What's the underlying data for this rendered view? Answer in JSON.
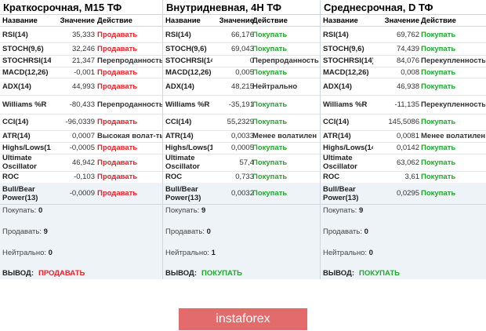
{
  "panels": [
    {
      "title": "Краткосрочная, M15 ТФ",
      "headers": {
        "name": "Название",
        "value": "Значение",
        "action": "Действие"
      },
      "rows": [
        {
          "name": "RSI(14)",
          "value": "35,333",
          "action": "Продавать",
          "status": "sell"
        },
        {
          "name": "STOCH(9,6)",
          "value": "32,246",
          "action": "Продавать",
          "status": "sell"
        },
        {
          "name": "STOCHRSI(14)",
          "value": "21,347",
          "action": "Перепроданность",
          "status": "neutral"
        },
        {
          "name": "MACD(12,26)",
          "value": "-0,001",
          "action": "Продавать",
          "status": "sell"
        },
        {
          "name": "ADX(14)",
          "value": "44,993",
          "action": "Продавать",
          "status": "sell"
        },
        {
          "name": "Williams %R",
          "value": "-80,433",
          "action": "Перепроданность",
          "status": "neutral"
        },
        {
          "name": "CCI(14)",
          "value": "-96,0339",
          "action": "Продавать",
          "status": "sell"
        },
        {
          "name": "ATR(14)",
          "value": "0,0007",
          "action": "Высокая волат-ть",
          "status": "neutral"
        },
        {
          "name": "Highs/Lows(14)",
          "value": "-0,0005",
          "action": "Продавать",
          "status": "sell"
        },
        {
          "name": "Ultimate Oscillator",
          "value": "46,942",
          "action": "Продавать",
          "status": "sell"
        },
        {
          "name": "ROC",
          "value": "-0,103",
          "action": "Продавать",
          "status": "sell"
        },
        {
          "name": "Bull/Bear Power(13)",
          "value": "-0,0009",
          "action": "Продавать",
          "status": "sell"
        }
      ],
      "summary": {
        "buy_label": "Покупать:",
        "buy_count": "0",
        "sell_label": "Продавать:",
        "sell_count": "9",
        "neutral_label": "Нейтрально:",
        "neutral_count": "0",
        "verdict_label": "ВЫВОД:",
        "verdict": "ПРОДАВАТЬ",
        "verdict_status": "sell"
      }
    },
    {
      "title": "Внутридневная, 4H ТФ",
      "headers": {
        "name": "Название",
        "value": "Значение",
        "action": "Действие"
      },
      "rows": [
        {
          "name": "RSI(14)",
          "value": "66,176",
          "action": "Покупать",
          "status": "buy"
        },
        {
          "name": "STOCH(9,6)",
          "value": "69,043",
          "action": "Покупать",
          "status": "buy"
        },
        {
          "name": "STOCHRSI(14)",
          "value": "0",
          "action": "Перепроданность",
          "status": "neutral"
        },
        {
          "name": "MACD(12,26)",
          "value": "0,005",
          "action": "Покупать",
          "status": "buy"
        },
        {
          "name": "ADX(14)",
          "value": "48,215",
          "action": "Нейтрально",
          "status": "neutral"
        },
        {
          "name": "Williams %R",
          "value": "-35,191",
          "action": "Покупать",
          "status": "buy"
        },
        {
          "name": "CCI(14)",
          "value": "55,2329",
          "action": "Покупать",
          "status": "buy"
        },
        {
          "name": "ATR(14)",
          "value": "0,0033",
          "action": "Менее волатилен",
          "status": "neutral"
        },
        {
          "name": "Highs/Lows(1",
          "value": "0,0005",
          "action": "Покупать",
          "status": "buy"
        },
        {
          "name": "Ultimate Oscillator",
          "value": "57,4",
          "action": "Покупать",
          "status": "buy"
        },
        {
          "name": "ROC",
          "value": "0,733",
          "action": "Покупать",
          "status": "buy"
        },
        {
          "name": "Bull/Bear Power(13)",
          "value": "0,0032",
          "action": "Покупать",
          "status": "buy"
        }
      ],
      "summary": {
        "buy_label": "Покупать:",
        "buy_count": "9",
        "sell_label": "Продавать:",
        "sell_count": "0",
        "neutral_label": "Нейтрально:",
        "neutral_count": "1",
        "verdict_label": "ВЫВОД:",
        "verdict": "ПОКУПАТЬ",
        "verdict_status": "buy"
      }
    },
    {
      "title": "Среднесрочная, D ТФ",
      "headers": {
        "name": "Название",
        "value": "Значение",
        "action": "Действие"
      },
      "rows": [
        {
          "name": "RSI(14)",
          "value": "69,762",
          "action": "Покупать",
          "status": "buy"
        },
        {
          "name": "STOCH(9,6)",
          "value": "74,439",
          "action": "Покупать",
          "status": "buy"
        },
        {
          "name": "STOCHRSI(14)",
          "value": "84,076",
          "action": "Перекупленность",
          "status": "neutral"
        },
        {
          "name": "MACD(12,26)",
          "value": "0,008",
          "action": "Покупать",
          "status": "buy"
        },
        {
          "name": "ADX(14)",
          "value": "46,938",
          "action": "Покупать",
          "status": "buy"
        },
        {
          "name": "Williams %R",
          "value": "-11,135",
          "action": "Перекупленность",
          "status": "neutral"
        },
        {
          "name": "CCI(14)",
          "value": "145,5086",
          "action": "Покупать",
          "status": "buy"
        },
        {
          "name": "ATR(14)",
          "value": "0,0081",
          "action": "Менее волатилен",
          "status": "neutral"
        },
        {
          "name": "Highs/Lows(14)",
          "value": "0,0142",
          "action": "Покупать",
          "status": "buy"
        },
        {
          "name": "Ultimate Oscillator",
          "value": "63,062",
          "action": "Покупать",
          "status": "buy"
        },
        {
          "name": "ROC",
          "value": "3,61",
          "action": "Покупать",
          "status": "buy"
        },
        {
          "name": "Bull/Bear Power(13)",
          "value": "0,0295",
          "action": "Покупать",
          "status": "buy"
        }
      ],
      "summary": {
        "buy_label": "Покупать:",
        "buy_count": "9",
        "sell_label": "Продавать:",
        "sell_count": "0",
        "neutral_label": "Нейтрально:",
        "neutral_count": "0",
        "verdict_label": "ВЫВОД:",
        "verdict": "ПОКУПАТЬ",
        "verdict_status": "buy"
      }
    }
  ],
  "logo": {
    "text": "instaforex"
  },
  "colors": {
    "buy": "#22a82e",
    "sell": "#e8232b",
    "logo_bg": "#e46b6b"
  }
}
